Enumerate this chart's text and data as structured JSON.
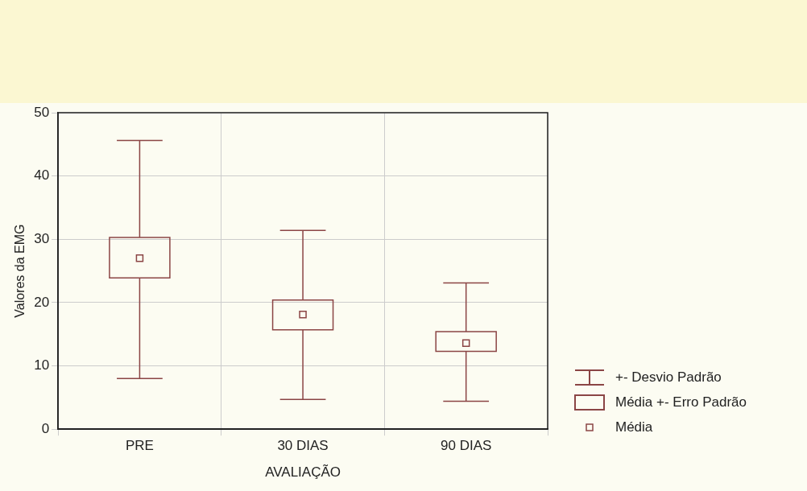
{
  "chart_data": {
    "type": "box",
    "xlabel": "AVALIAÇÃO",
    "ylabel": "Valores da EMG",
    "categories": [
      "PRE",
      "30 DIAS",
      "90 DIAS"
    ],
    "series": [
      {
        "color": "#8b4545",
        "boxes": [
          {
            "low": 8.0,
            "q1": 23.9,
            "median": 27.0,
            "q3": 30.3,
            "high": 45.6
          },
          {
            "low": 4.7,
            "q1": 15.7,
            "median": 18.1,
            "q3": 20.4,
            "high": 31.4
          },
          {
            "low": 4.4,
            "q1": 12.3,
            "median": 13.6,
            "q3": 15.4,
            "high": 23.1
          }
        ]
      }
    ],
    "ylim": [
      0,
      50
    ],
    "yticks": [
      0,
      10,
      20,
      30,
      40,
      50
    ],
    "grid": true,
    "annotations": [
      "+- Desvio Padrão",
      "Média +- Erro Padrão",
      "Média"
    ]
  }
}
